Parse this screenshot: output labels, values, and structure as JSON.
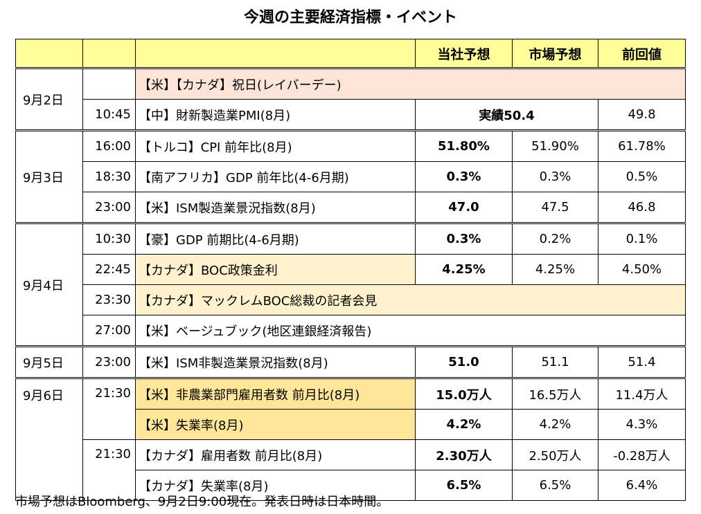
{
  "title": "今週の主要経済指標・イベント",
  "headers": {
    "ours": "当社予想",
    "market": "市場予想",
    "previous": "前回値"
  },
  "rows": [
    {
      "date": "9月2日",
      "time": "",
      "event": "【米】【カナダ】祝日(レイバーデー)"
    },
    {
      "date": "",
      "time": "10:45",
      "event": "【中】財新製造業PMI(8月)",
      "actual": "実績50.4",
      "previous": "49.8"
    },
    {
      "date": "9月3日",
      "time": "16:00",
      "event": "【トルコ】CPI 前年比(8月)",
      "ours": "51.80%",
      "market": "51.90%",
      "previous": "61.78%"
    },
    {
      "date": "",
      "time": "18:30",
      "event": "【南アフリカ】GDP 前年比(4-6月期)",
      "ours": "0.3%",
      "market": "0.3%",
      "previous": "0.5%"
    },
    {
      "date": "",
      "time": "23:00",
      "event": "【米】ISM製造業景況指数(8月)",
      "ours": "47.0",
      "market": "47.5",
      "previous": "46.8"
    },
    {
      "date": "9月4日",
      "time": "10:30",
      "event": "【豪】GDP 前期比(4-6月期)",
      "ours": "0.3%",
      "market": "0.2%",
      "previous": "0.1%"
    },
    {
      "date": "",
      "time": "22:45",
      "event": "【カナダ】BOC政策金利",
      "ours": "4.25%",
      "market": "4.25%",
      "previous": "4.50%"
    },
    {
      "date": "",
      "time": "23:30",
      "event": "【カナダ】マックレムBOC総裁の記者会見"
    },
    {
      "date": "",
      "time": "27:00",
      "event": "【米】ベージュブック(地区連銀経済報告)"
    },
    {
      "date": "9月5日",
      "time": "23:00",
      "event": "【米】ISM非製造業景況指数(8月)",
      "ours": "51.0",
      "market": "51.1",
      "previous": "51.4"
    },
    {
      "date": "9月6日",
      "time": "21:30",
      "event": "【米】非農業部門雇用者数 前月比(8月)",
      "ours": "15.0万人",
      "market": "16.5万人",
      "previous": "11.4万人"
    },
    {
      "date": "",
      "time": "",
      "event": "【米】失業率(8月)",
      "ours": "4.2%",
      "market": "4.2%",
      "previous": "4.3%"
    },
    {
      "date": "",
      "time": "21:30",
      "event": "【カナダ】雇用者数 前月比(8月)",
      "ours": "2.30万人",
      "market": "2.50万人",
      "previous": "-0.28万人"
    },
    {
      "date": "",
      "time": "",
      "event": "【カナダ】失業率(8月)",
      "ours": "6.5%",
      "market": "6.5%",
      "previous": "6.4%"
    }
  ],
  "note": "市場予想はBloomberg、9月2日9:00現在。発表日時は日本時間。",
  "colors": {
    "header": "#ffff99",
    "holiday": "#fce4d6",
    "highlight": "#fff2cc",
    "highlight_strong": "#ffe699"
  }
}
